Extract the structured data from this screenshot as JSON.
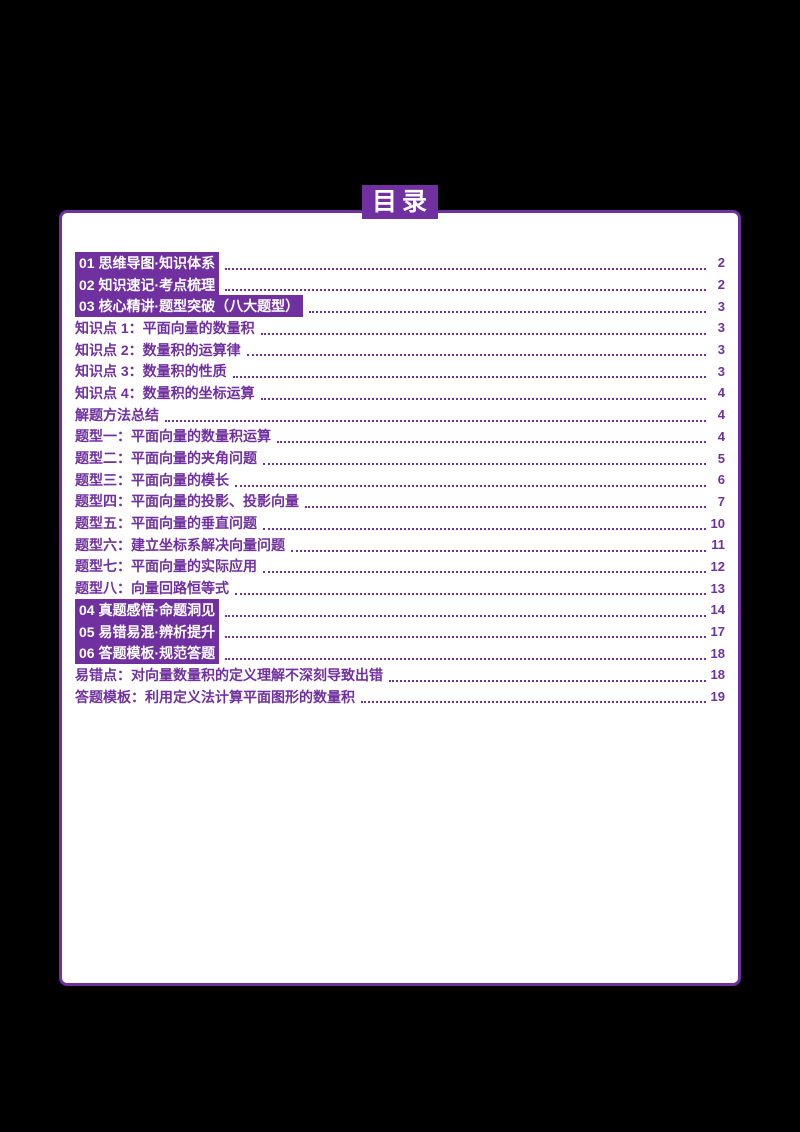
{
  "document": {
    "title": "目录",
    "accent_color": "#7030A0",
    "page_background": "#000000",
    "paper_color": "#ffffff",
    "entries": [
      {
        "label": "01 思维导图·知识体系",
        "page": "2",
        "highlight": true
      },
      {
        "label": "02 知识速记·考点梳理",
        "page": "2",
        "highlight": true
      },
      {
        "label": "03 核心精讲·题型突破（八大题型）",
        "page": "3",
        "highlight": true
      },
      {
        "label": "知识点 1：平面向量的数量积",
        "page": "3",
        "highlight": false
      },
      {
        "label": "知识点 2：数量积的运算律",
        "page": "3",
        "highlight": false
      },
      {
        "label": "知识点 3：数量积的性质",
        "page": "3",
        "highlight": false
      },
      {
        "label": "知识点 4：数量积的坐标运算",
        "page": "4",
        "highlight": false
      },
      {
        "label": "解题方法总结",
        "page": "4",
        "highlight": false
      },
      {
        "label": "题型一：平面向量的数量积运算",
        "page": "4",
        "highlight": false
      },
      {
        "label": "题型二：平面向量的夹角问题",
        "page": "5",
        "highlight": false
      },
      {
        "label": "题型三：平面向量的模长",
        "page": "6",
        "highlight": false
      },
      {
        "label": "题型四：平面向量的投影、投影向量",
        "page": "7",
        "highlight": false
      },
      {
        "label": "题型五：平面向量的垂直问题",
        "page": "10",
        "highlight": false
      },
      {
        "label": "题型六：建立坐标系解决向量问题",
        "page": "11",
        "highlight": false
      },
      {
        "label": "题型七：平面向量的实际应用",
        "page": "12",
        "highlight": false
      },
      {
        "label": "题型八：向量回路恒等式",
        "page": "13",
        "highlight": false
      },
      {
        "label": "04 真题感悟·命题洞见",
        "page": "14",
        "highlight": true
      },
      {
        "label": "05 易错易混·辨析提升",
        "page": "17",
        "highlight": true
      },
      {
        "label": "06 答题模板·规范答题",
        "page": "18",
        "highlight": true
      },
      {
        "label": "易错点：对向量数量积的定义理解不深刻导致出错",
        "page": "18",
        "highlight": false
      },
      {
        "label": "答题模板：利用定义法计算平面图形的数量积",
        "page": "19",
        "highlight": false
      }
    ]
  }
}
